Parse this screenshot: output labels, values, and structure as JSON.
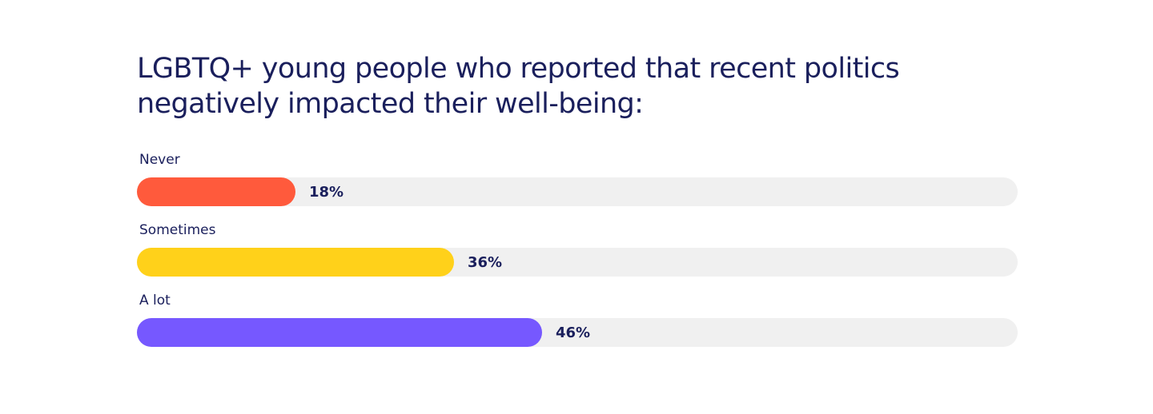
{
  "chart_data": {
    "type": "bar",
    "orientation": "horizontal",
    "title": "LGBTQ+ young people who reported that recent politics negatively impacted their well-being:",
    "categories": [
      "Never",
      "Sometimes",
      "A lot"
    ],
    "values": [
      18,
      36,
      46
    ],
    "value_labels": [
      "18%",
      "36%",
      "46%"
    ],
    "xlim": [
      0,
      100
    ],
    "colors": [
      "#ff5a3c",
      "#ffd11a",
      "#7658ff"
    ],
    "track_color": "#f0f0f0",
    "grid": false
  }
}
